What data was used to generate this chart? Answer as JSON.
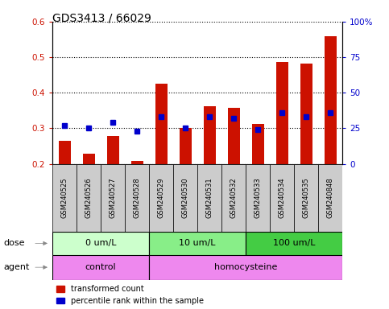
{
  "title": "GDS3413 / 66029",
  "samples": [
    "GSM240525",
    "GSM240526",
    "GSM240527",
    "GSM240528",
    "GSM240529",
    "GSM240530",
    "GSM240531",
    "GSM240532",
    "GSM240533",
    "GSM240534",
    "GSM240535",
    "GSM240848"
  ],
  "transformed_count": [
    0.265,
    0.228,
    0.278,
    0.208,
    0.425,
    0.3,
    0.363,
    0.357,
    0.312,
    0.487,
    0.483,
    0.56
  ],
  "percentile_rank_pct": [
    27,
    25,
    29,
    23,
    33,
    25,
    33,
    32,
    24,
    36,
    33,
    36
  ],
  "ylim_left": [
    0.2,
    0.6
  ],
  "ylim_right": [
    0,
    100
  ],
  "yticks_left": [
    0.2,
    0.3,
    0.4,
    0.5,
    0.6
  ],
  "yticks_right": [
    0,
    25,
    50,
    75,
    100
  ],
  "ytick_labels_right": [
    "0",
    "25",
    "50",
    "75",
    "100%"
  ],
  "bar_bottom": 0.2,
  "dose_groups": [
    {
      "label": "0 um/L",
      "start": 0,
      "end": 4,
      "color": "#ccffcc"
    },
    {
      "label": "10 um/L",
      "start": 4,
      "end": 8,
      "color": "#88ee88"
    },
    {
      "label": "100 um/L",
      "start": 8,
      "end": 12,
      "color": "#44cc44"
    }
  ],
  "agent_groups": [
    {
      "label": "control",
      "start": 0,
      "end": 4,
      "color": "#ee88ee"
    },
    {
      "label": "homocysteine",
      "start": 4,
      "end": 12,
      "color": "#ee88ee"
    }
  ],
  "dose_label": "dose",
  "agent_label": "agent",
  "bar_color": "#cc1100",
  "dot_color": "#0000cc",
  "legend_items": [
    {
      "color": "#cc1100",
      "label": "transformed count"
    },
    {
      "color": "#0000cc",
      "label": "percentile rank within the sample"
    }
  ],
  "ax_label_color_left": "#cc1100",
  "ax_label_color_right": "#0000cc",
  "sample_bg_color": "#cccccc"
}
